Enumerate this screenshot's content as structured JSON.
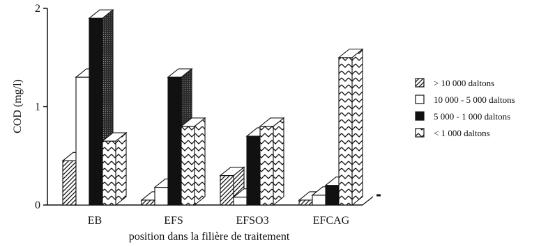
{
  "chart_data": {
    "type": "bar",
    "style": "3d-clustered",
    "title": "",
    "xlabel": "position dans la filière de traitement",
    "ylabel": "COD (mg/l)",
    "ylim": [
      0,
      2
    ],
    "yticks": [
      "0",
      "1",
      "2"
    ],
    "grid": false,
    "legend_position": "right",
    "categories": [
      "EB",
      "EFS",
      "EFSO3",
      "EFCAG"
    ],
    "series": [
      {
        "name": "> 10 000 daltons",
        "pattern": "diagonal-hatch",
        "values": [
          0.45,
          0.05,
          0.3,
          0.05
        ]
      },
      {
        "name": "10 000 - 5 000 daltons",
        "pattern": "white",
        "values": [
          1.3,
          0.18,
          0.08,
          0.1
        ]
      },
      {
        "name": "5 000 - 1 000 daltons",
        "pattern": "black",
        "values": [
          1.9,
          1.3,
          0.7,
          0.2
        ]
      },
      {
        "name": "< 1 000 daltons",
        "pattern": "zigzag",
        "values": [
          0.65,
          0.8,
          0.8,
          1.5
        ]
      }
    ]
  }
}
